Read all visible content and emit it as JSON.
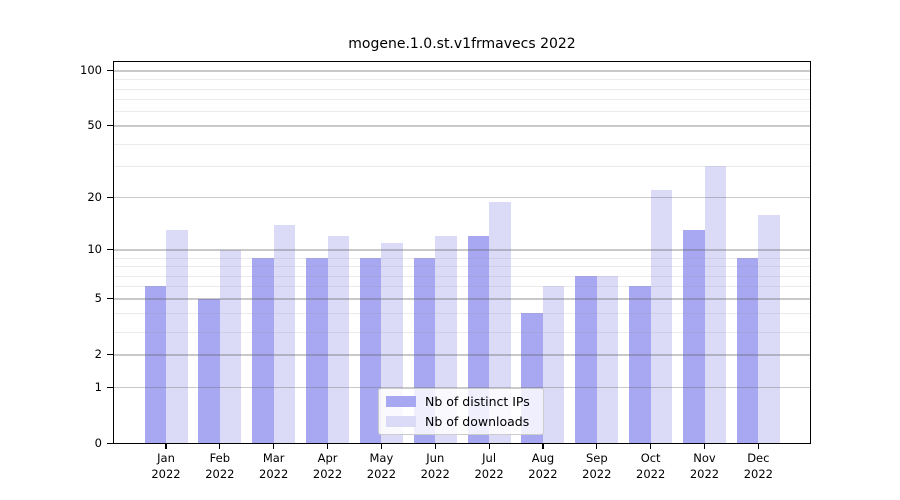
{
  "chart_data": {
    "type": "bar",
    "title": "mogene.1.0.st.v1frmavecs 2022",
    "categories": [
      {
        "month": "Jan",
        "year": "2022"
      },
      {
        "month": "Feb",
        "year": "2022"
      },
      {
        "month": "Mar",
        "year": "2022"
      },
      {
        "month": "Apr",
        "year": "2022"
      },
      {
        "month": "May",
        "year": "2022"
      },
      {
        "month": "Jun",
        "year": "2022"
      },
      {
        "month": "Jul",
        "year": "2022"
      },
      {
        "month": "Aug",
        "year": "2022"
      },
      {
        "month": "Sep",
        "year": "2022"
      },
      {
        "month": "Oct",
        "year": "2022"
      },
      {
        "month": "Nov",
        "year": "2022"
      },
      {
        "month": "Dec",
        "year": "2022"
      }
    ],
    "series": [
      {
        "name": "Nb of distinct IPs",
        "color": "#a8a8f2",
        "values": [
          6,
          5,
          9,
          9,
          9,
          9,
          12,
          4,
          7,
          6,
          13,
          9
        ]
      },
      {
        "name": "Nb of downloads",
        "color": "#dbdbf8",
        "values": [
          13,
          10,
          14,
          12,
          11,
          12,
          19,
          6,
          7,
          22,
          30,
          16
        ]
      }
    ],
    "yscale": "log1p",
    "ylim": [
      0,
      112
    ],
    "yticks": [
      0,
      1,
      2,
      5,
      10,
      20,
      50,
      100
    ],
    "minor_yticks": [
      3,
      4,
      6,
      7,
      8,
      9,
      30,
      40,
      60,
      70,
      80,
      90
    ],
    "grid": true,
    "legend_position": "inside-bottom-center",
    "colors": {
      "major_grid": "#c9c9c9",
      "minor_grid": "#eaeaea",
      "spine": "#000000",
      "text": "#000000",
      "background": "#ffffff"
    }
  }
}
